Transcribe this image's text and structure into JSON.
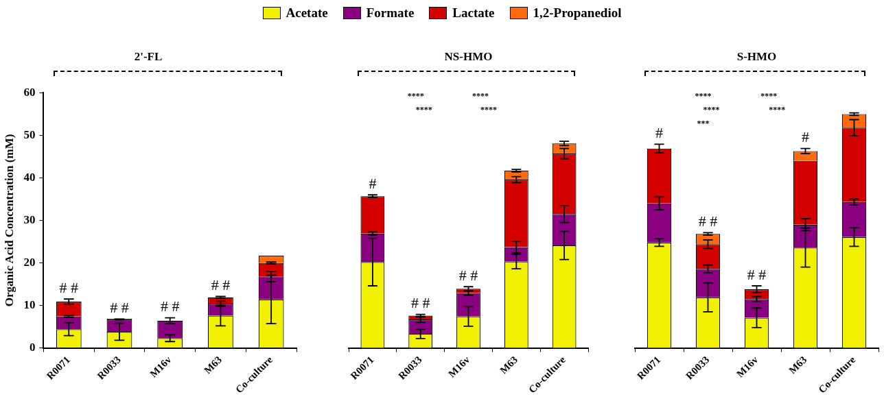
{
  "chart_data": [
    {
      "type": "bar",
      "title": "2'-FL",
      "ylabel": "Organic Acid Concentration (mM)",
      "stacked": true,
      "legend": "top",
      "grid": false,
      "categories": [
        "R0071",
        "R0033",
        "M16v",
        "M63",
        "Co-culture"
      ],
      "ylim": [
        0,
        60
      ],
      "yticks": [
        0,
        10,
        20,
        30,
        40,
        50,
        60
      ],
      "series": [
        {
          "name": "Acetate",
          "color": "#f0f000",
          "values": [
            4.4,
            3.8,
            2.3,
            7.6,
            11.4
          ],
          "errors": [
            1.5,
            2.0,
            0.8,
            2.4,
            5.7
          ]
        },
        {
          "name": "Formate",
          "color": "#8b0080",
          "values": [
            3.0,
            2.9,
            4.1,
            2.8,
            5.4
          ],
          "errors": [
            0.2,
            0.1,
            0.7,
            0.6,
            1.2
          ]
        },
        {
          "name": "Lactate",
          "color": "#d40000",
          "values": [
            3.5,
            0.2,
            null,
            1.5,
            3.2
          ],
          "errors": [
            0.6,
            null,
            null,
            0.2,
            0.2
          ]
        },
        {
          "name": "1,2-Propanediol",
          "color": "#ff6a10",
          "values": [
            null,
            null,
            null,
            null,
            1.7
          ],
          "errors": [
            null,
            null,
            null,
            null,
            null
          ],
          "value_labels": [
            "# #",
            "# #",
            "# #",
            "# #",
            null
          ]
        }
      ]
    },
    {
      "type": "bar",
      "title": "NS-HMO",
      "stacked": true,
      "grid": false,
      "tick_labels": "x",
      "categories": [
        "R0071",
        "R0033",
        "M16v",
        "M63",
        "Co-culture"
      ],
      "ylim": [
        0,
        60
      ],
      "yticks": [
        0,
        10,
        20,
        30,
        40,
        50,
        60
      ],
      "series": [
        {
          "color": "#f0f000",
          "values": [
            20.2,
            3.3,
            7.4,
            20.3,
            24.1
          ],
          "errors": [
            5.6,
            1.1,
            2.3,
            1.7,
            3.3
          ]
        },
        {
          "color": "#8b0080",
          "values": [
            6.7,
            3.4,
            5.5,
            3.4,
            7.4
          ],
          "errors": [
            0.4,
            0.7,
            0.5,
            1.4,
            2.0
          ]
        },
        {
          "color": "#d40000",
          "values": [
            8.8,
            0.9,
            1.0,
            15.9,
            14.2
          ],
          "errors": [
            0.3,
            0.3,
            0.5,
            0.7,
            1.2
          ]
        },
        {
          "color": "#ff6a10",
          "values": [
            null,
            null,
            null,
            2.1,
            2.4
          ],
          "errors": [
            null,
            null,
            null,
            0.3,
            0.5
          ],
          "value_labels": [
            "#",
            "# #",
            "# #",
            null,
            null
          ]
        }
      ],
      "annotations": [
        "****",
        "****",
        "****",
        "****"
      ]
    },
    {
      "type": "bar",
      "title": "S-HMO",
      "stacked": true,
      "grid": false,
      "tick_labels": "x",
      "categories": [
        "R0071",
        "R0033",
        "M16v",
        "M63",
        "Co-culture"
      ],
      "ylim": [
        0,
        60
      ],
      "yticks": [
        0,
        10,
        20,
        30,
        40,
        50,
        60
      ],
      "series": [
        {
          "color": "#f0f000",
          "values": [
            24.8,
            11.9,
            7.1,
            23.6,
            26.1
          ],
          "errors": [
            0.9,
            3.4,
            2.3,
            4.6,
            2.2
          ]
        },
        {
          "color": "#8b0080",
          "values": [
            9.2,
            6.7,
            4.4,
            5.4,
            8.2
          ],
          "errors": [
            1.5,
            0.9,
            0.6,
            1.4,
            0.7
          ]
        },
        {
          "color": "#d40000",
          "values": [
            12.9,
            5.8,
            2.3,
            15.0,
            17.5
          ],
          "errors": [
            1.0,
            1.0,
            0.8,
            null,
            1.9
          ]
        },
        {
          "color": "#ff6a10",
          "values": [
            null,
            2.4,
            null,
            2.3,
            3.2
          ],
          "errors": [
            null,
            0.3,
            null,
            0.6,
            0.3
          ],
          "value_labels": [
            "#",
            "# #",
            "# #",
            "#",
            null
          ]
        }
      ],
      "annotations": [
        "****",
        "****",
        "****",
        "****",
        "***"
      ]
    }
  ]
}
